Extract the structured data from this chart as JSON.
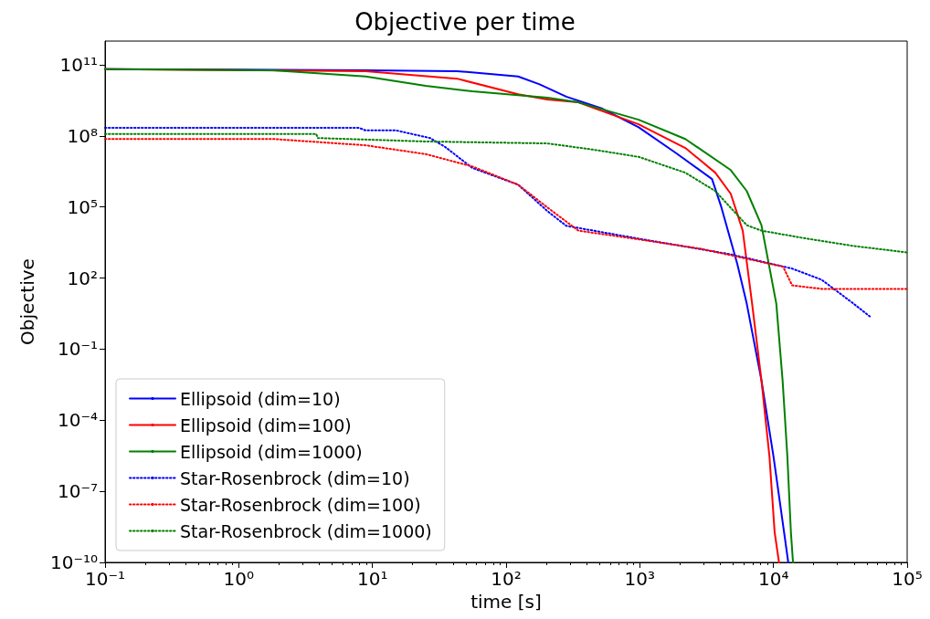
{
  "chart_data": {
    "type": "line",
    "title": "Objective per time",
    "xlabel": "time [s]",
    "ylabel": "Objective",
    "log": "xy",
    "grid": false,
    "legend": "bottom left",
    "marker": "none",
    "xlim": [
      0.1,
      100000
    ],
    "ylim": [
      1e-10,
      1000000000000.0
    ],
    "xticks": [
      {
        "value": 0.1,
        "label": "10⁻¹"
      },
      {
        "value": 1,
        "label": "10⁰"
      },
      {
        "value": 10,
        "label": "10¹"
      },
      {
        "value": 100,
        "label": "10²"
      },
      {
        "value": 1000,
        "label": "10³"
      },
      {
        "value": 10000,
        "label": "10⁴"
      },
      {
        "value": 100000,
        "label": "10⁵"
      }
    ],
    "yticks": [
      {
        "value": 1e-10,
        "label": "10⁻¹⁰"
      },
      {
        "value": 1e-07,
        "label": "10⁻⁷"
      },
      {
        "value": 0.0001,
        "label": "10⁻⁴"
      },
      {
        "value": 0.1,
        "label": "10⁻¹"
      },
      {
        "value": 100,
        "label": "10²"
      },
      {
        "value": 100000,
        "label": "10⁵"
      },
      {
        "value": 100000000.0,
        "label": "10⁸"
      },
      {
        "value": 100000000000.0,
        "label": "10¹¹"
      }
    ],
    "series": [
      {
        "name": "Ellipsoid (dim=10)",
        "color": "#0000ff",
        "line_style": "solid",
        "x": [
          0.1,
          8.9,
          43,
          123,
          178,
          282,
          525,
          980,
          1860,
          3470,
          4070,
          5370,
          6310,
          8130,
          10000,
          12000,
          12900
        ],
        "values": [
          65000000000.0,
          59000000000.0,
          54000000000.0,
          32000000000.0,
          15000000000.0,
          4500000000.0,
          1400000000.0,
          230000000.0,
          19000000.0,
          1500000.0,
          100000.0,
          380,
          8.3,
          0.0048,
          3e-06,
          1.9e-09,
          1e-10
        ]
      },
      {
        "name": "Ellipsoid (dim=100)",
        "color": "#ff0000",
        "line_style": "solid",
        "x": [
          0.1,
          8.9,
          43,
          123,
          204,
          347,
          980,
          2190,
          3670,
          4790,
          5890,
          6920,
          8130,
          9330,
          10200,
          11000
        ],
        "values": [
          65000000000.0,
          54000000000.0,
          26000000000.0,
          5700000000.0,
          3400000000.0,
          2600000000.0,
          310000000.0,
          31000000.0,
          2800000.0,
          360000.0,
          10000.0,
          8.3,
          0.0048,
          3e-06,
          1.9e-09,
          1e-10
        ]
      },
      {
        "name": "Ellipsoid (dim=1000)",
        "color": "#008000",
        "line_style": "solid",
        "x": [
          0.1,
          1.8,
          8.9,
          25,
          56,
          204,
          347,
          980,
          2190,
          4790,
          6310,
          8130,
          10500,
          11700,
          12700,
          13500,
          14000
        ],
        "values": [
          65000000000.0,
          59000000000.0,
          32000000000.0,
          13000000000.0,
          7600000000.0,
          4100000000.0,
          2600000000.0,
          480000000.0,
          74000000.0,
          3600000.0,
          470000.0,
          17000.0,
          8.3,
          0.0048,
          3e-06,
          1.9e-09,
          1e-10
        ]
      },
      {
        "name": "Star-Rosenbrock (dim=10)",
        "color": "#0000ff",
        "line_style": "dotted",
        "x": [
          0.1,
          7.9,
          8.9,
          15,
          27,
          35,
          56,
          123,
          204,
          282,
          347,
          980,
          4790,
          13800,
          22900,
          38900,
          52500
        ],
        "values": [
          220000000.0,
          220000000.0,
          170000000.0,
          170000000.0,
          81000000.0,
          34000000.0,
          4400000.0,
          870000.0,
          66000.0,
          16000.0,
          13000.0,
          4600,
          1000,
          250,
          85,
          9.1,
          2.4
        ]
      },
      {
        "name": "Star-Rosenbrock (dim=100)",
        "color": "#ff0000",
        "line_style": "dotted",
        "x": [
          0.1,
          1.8,
          8.9,
          25,
          56,
          123,
          204,
          347,
          980,
          2900,
          11800,
          13800,
          22900,
          100000
        ],
        "values": [
          74000000.0,
          74000000.0,
          40000000.0,
          17000000.0,
          5100000.0,
          870000.0,
          95000.0,
          10000.0,
          4300,
          1700,
          300,
          49,
          35,
          35
        ]
      },
      {
        "name": "Star-Rosenbrock (dim=1000)",
        "color": "#008000",
        "line_style": "dotted",
        "x": [
          0.1,
          3.8,
          3.9,
          25,
          204,
          453,
          980,
          2190,
          3670,
          6310,
          8130,
          17800,
          38900,
          100000
        ],
        "values": [
          120000000.0,
          120000000.0,
          81000000.0,
          58000000.0,
          48000000.0,
          26000000.0,
          13000000.0,
          2800000.0,
          470000.0,
          17000.0,
          10000.0,
          4600,
          2300,
          1200
        ]
      }
    ]
  }
}
